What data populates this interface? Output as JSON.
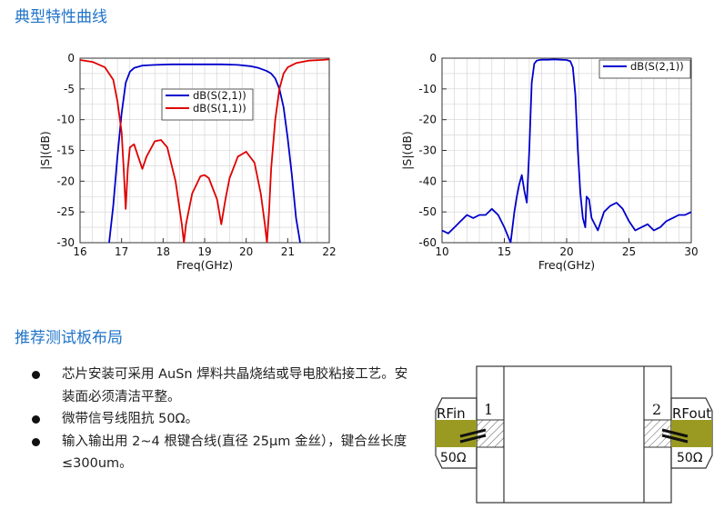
{
  "section1": {
    "title": "典型特性曲线"
  },
  "section2": {
    "title": "推荐测试板布局"
  },
  "notes": [
    "芯片安装可采用 AuSn 焊料共晶烧结或导电胶粘接工艺。安装面必须清洁平整。",
    "微带信号线阻抗 50Ω。",
    "输入输出用 2~4 根键合线(直径 25μm 金丝），键合丝长度≤300um。"
  ],
  "layout": {
    "port1_label": "RFin",
    "port2_label": "RFout",
    "port1_number": "1",
    "port2_number": "2",
    "impedance_in": "50Ω",
    "impedance_out": "50Ω",
    "colors": {
      "pad": "#9a9a22",
      "line": "#333333"
    }
  },
  "chart_data": [
    {
      "type": "line",
      "title": "",
      "xlabel": "Freq(GHz)",
      "ylabel": "|S|(dB)",
      "xlim": [
        16,
        22
      ],
      "ylim": [
        -30,
        0
      ],
      "xticks": [
        16,
        17,
        18,
        19,
        20,
        21,
        22
      ],
      "yticks": [
        0,
        -5,
        -10,
        -15,
        -20,
        -25,
        -30
      ],
      "grid": true,
      "legend_position": "upper-center",
      "series": [
        {
          "name": "dB(S(2,1))",
          "color": "#0000cc",
          "x": [
            16.7,
            16.8,
            16.9,
            17.0,
            17.1,
            17.2,
            17.3,
            17.5,
            17.8,
            18.2,
            18.6,
            19.0,
            19.4,
            19.8,
            20.1,
            20.3,
            20.5,
            20.6,
            20.7,
            20.8,
            20.9,
            21.0,
            21.1,
            21.2,
            21.3
          ],
          "y": [
            -30,
            -24,
            -16,
            -9,
            -4,
            -2.2,
            -1.6,
            -1.2,
            -1.1,
            -1.0,
            -1.0,
            -1.0,
            -1.0,
            -1.1,
            -1.3,
            -1.6,
            -2.1,
            -2.5,
            -3.3,
            -5,
            -8,
            -13,
            -19,
            -26,
            -30
          ]
        },
        {
          "name": "dB(S(1,1))",
          "color": "#e00000",
          "x": [
            16.0,
            16.3,
            16.6,
            16.8,
            16.9,
            17.0,
            17.05,
            17.1,
            17.15,
            17.2,
            17.3,
            17.4,
            17.5,
            17.6,
            17.8,
            17.95,
            18.1,
            18.3,
            18.45,
            18.5,
            18.55,
            18.7,
            18.9,
            19.0,
            19.1,
            19.3,
            19.4,
            19.5,
            19.6,
            19.8,
            20.0,
            20.2,
            20.35,
            20.45,
            20.5,
            20.55,
            20.6,
            20.7,
            20.8,
            20.9,
            21.0,
            21.2,
            21.5,
            21.8,
            22.0
          ],
          "y": [
            -0.3,
            -0.6,
            -1.5,
            -3.5,
            -7,
            -12,
            -18,
            -24.5,
            -18,
            -14.5,
            -14,
            -16,
            -18,
            -16,
            -13.5,
            -13.3,
            -14.5,
            -20,
            -27,
            -30,
            -27,
            -22,
            -19.2,
            -19.0,
            -19.5,
            -23,
            -27,
            -23,
            -19.5,
            -16,
            -15.2,
            -17,
            -22,
            -27,
            -30,
            -25,
            -18,
            -10,
            -5,
            -2.5,
            -1.5,
            -0.8,
            -0.4,
            -0.3,
            -0.2
          ]
        }
      ]
    },
    {
      "type": "line",
      "title": "",
      "xlabel": "Freq(GHz)",
      "ylabel": "|S|(dB)",
      "xlim": [
        10,
        30
      ],
      "ylim": [
        -60,
        0
      ],
      "xticks": [
        10,
        15,
        20,
        25,
        30
      ],
      "yticks": [
        0,
        -10,
        -20,
        -30,
        -40,
        -50,
        -60
      ],
      "grid": true,
      "legend_position": "top-right",
      "series": [
        {
          "name": "dB(S(2,1))",
          "color": "#0000cc",
          "x": [
            10.0,
            10.5,
            11.0,
            11.5,
            12.0,
            12.5,
            13.0,
            13.5,
            14.0,
            14.5,
            15.0,
            15.3,
            15.5,
            15.8,
            16.0,
            16.2,
            16.4,
            16.6,
            16.8,
            17.0,
            17.2,
            17.4,
            17.6,
            17.8,
            18.0,
            18.5,
            19.0,
            19.5,
            20.0,
            20.3,
            20.5,
            20.7,
            20.9,
            21.1,
            21.3,
            21.5,
            21.6,
            21.8,
            22.0,
            22.5,
            23.0,
            23.5,
            24.0,
            24.5,
            25.0,
            25.5,
            26.0,
            26.5,
            27.0,
            27.5,
            28.0,
            28.5,
            29.0,
            29.5,
            30.0
          ],
          "y": [
            -56,
            -57,
            -55,
            -53,
            -51,
            -52,
            -51,
            -51,
            -49,
            -51,
            -55,
            -58,
            -60,
            -50,
            -45,
            -41,
            -38,
            -43,
            -47,
            -30,
            -8,
            -1.8,
            -0.8,
            -0.6,
            -0.5,
            -0.5,
            -0.4,
            -0.5,
            -0.6,
            -1.0,
            -3,
            -12,
            -30,
            -44,
            -52,
            -55,
            -45,
            -46,
            -52,
            -56,
            -50,
            -48,
            -47,
            -49,
            -53,
            -56,
            -55,
            -54,
            -56,
            -55,
            -53,
            -52,
            -51,
            -51,
            -50
          ]
        }
      ]
    }
  ]
}
